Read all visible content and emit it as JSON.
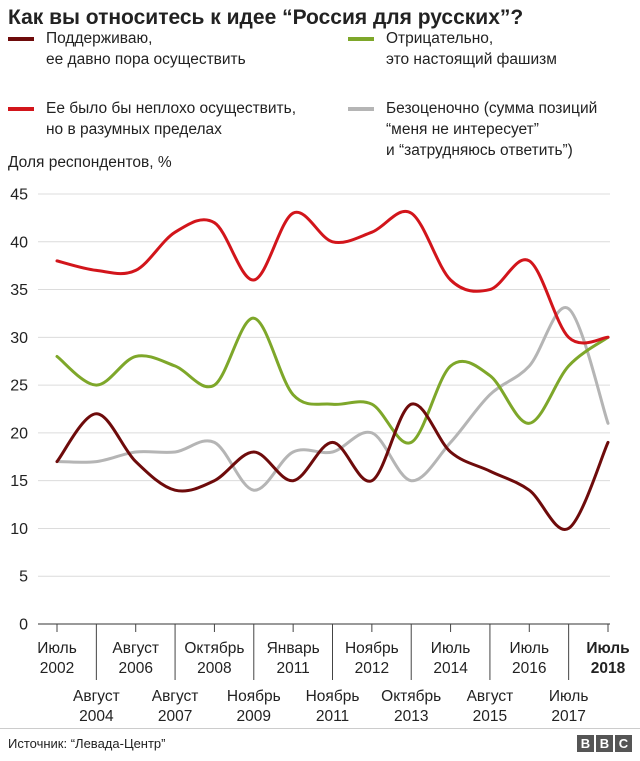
{
  "title": "Как вы относитесь к идее “Россия для русских”?",
  "legend": [
    {
      "lines": [
        "Поддерживаю,",
        "ее давно пора осуществить"
      ],
      "color": "#6e0b0b"
    },
    {
      "lines": [
        "Ее было бы неплохо осуществить,",
        "но в разумных пределах"
      ],
      "color": "#d2151b"
    },
    {
      "lines": [
        "Отрицательно,",
        "это настоящий фашизм"
      ],
      "color": "#7ea72a"
    },
    {
      "lines": [
        "Безоценочно (сумма позиций",
        "“меня не интересует”",
        "и “затрудняюсь ответить”)"
      ],
      "color": "#b5b5b5"
    }
  ],
  "ylabel_text": "Доля респондентов, %",
  "source": "Источник: “Левада-Центр”",
  "logo": [
    "B",
    "B",
    "C"
  ],
  "chart_data": {
    "type": "line",
    "x": [
      "Июль 2002",
      "Август 2004",
      "Август 2006",
      "Август 2007",
      "Октябрь 2008",
      "Ноябрь 2009",
      "Январь 2011",
      "Ноябрь 2011",
      "Ноябрь 2012",
      "Октябрь 2013",
      "Июль 2014",
      "Август 2015",
      "Июль 2016",
      "Июль 2017",
      "Июль 2018"
    ],
    "ticks": [
      {
        "l1": "Июль",
        "l2": "2002",
        "row": 0
      },
      {
        "l1": "Август",
        "l2": "2004",
        "row": 1
      },
      {
        "l1": "Август",
        "l2": "2006",
        "row": 0
      },
      {
        "l1": "Август",
        "l2": "2007",
        "row": 1
      },
      {
        "l1": "Октябрь",
        "l2": "2008",
        "row": 0
      },
      {
        "l1": "Ноябрь",
        "l2": "2009",
        "row": 1
      },
      {
        "l1": "Январь",
        "l2": "2011",
        "row": 0
      },
      {
        "l1": "Ноябрь",
        "l2": "2011",
        "row": 1
      },
      {
        "l1": "Ноябрь",
        "l2": "2012",
        "row": 0
      },
      {
        "l1": "Октябрь",
        "l2": "2013",
        "row": 1
      },
      {
        "l1": "Июль",
        "l2": "2014",
        "row": 0
      },
      {
        "l1": "Август",
        "l2": "2015",
        "row": 1
      },
      {
        "l1": "Июль",
        "l2": "2016",
        "row": 0
      },
      {
        "l1": "Июль",
        "l2": "2017",
        "row": 1
      },
      {
        "l1": "Июль",
        "l2": "2018",
        "row": 0,
        "bold": true
      }
    ],
    "series": [
      {
        "name": "Поддерживаю, ее давно пора осуществить",
        "color": "#6e0b0b",
        "values": [
          17,
          22,
          17,
          14,
          15,
          18,
          15,
          19,
          15,
          23,
          18,
          16,
          14,
          10,
          19
        ]
      },
      {
        "name": "Ее было бы неплохо осуществить, но в разумных пределах",
        "color": "#d2151b",
        "values": [
          38,
          37,
          37,
          41,
          42,
          36,
          43,
          40,
          41,
          43,
          36,
          35,
          38,
          30,
          30
        ]
      },
      {
        "name": "Отрицательно, это настоящий фашизм",
        "color": "#7ea72a",
        "values": [
          28,
          25,
          28,
          27,
          25,
          32,
          24,
          23,
          23,
          19,
          27,
          26,
          21,
          27,
          30
        ]
      },
      {
        "name": "Безоценочно",
        "color": "#b5b5b5",
        "values": [
          17,
          17,
          18,
          18,
          19,
          14,
          18,
          18,
          20,
          15,
          19,
          24,
          27,
          33,
          21
        ]
      }
    ],
    "yticks": [
      0,
      5,
      10,
      15,
      20,
      25,
      30,
      35,
      40,
      45
    ],
    "ylim": [
      0,
      45
    ],
    "grid": true
  }
}
